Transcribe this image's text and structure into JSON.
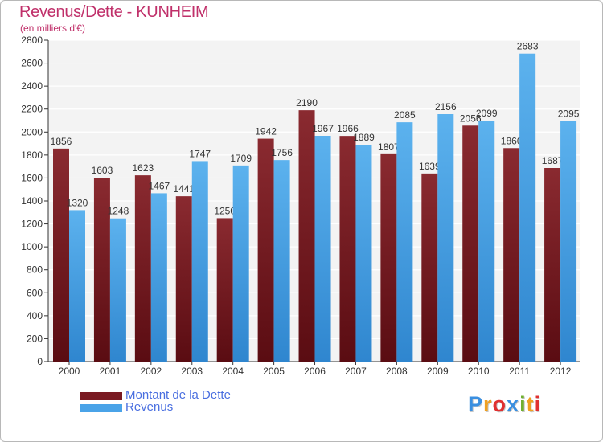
{
  "header": {
    "title": "Revenus/Dette - KUNHEIM",
    "subtitle": "(en milliers d'€)"
  },
  "legend": {
    "debt_label": "Montant de la Dette",
    "revenue_label": "Revenus"
  },
  "logo": {
    "letters": [
      "P",
      "r",
      "o",
      "x",
      "i",
      "t",
      "i"
    ],
    "colors": [
      "#3a8fe0",
      "#f0a020",
      "#e03030",
      "#3a8fe0",
      "#70b030",
      "#f0a020",
      "#e03030"
    ]
  },
  "colors": {
    "debt": "#7a1a22",
    "revenue": "#4aa3e8",
    "title": "#c0306a",
    "legend_text": "#4a6fe0"
  },
  "chart_data": {
    "type": "bar",
    "title": "Revenus/Dette - KUNHEIM",
    "subtitle": "(en milliers d'€)",
    "categories": [
      "2000",
      "2001",
      "2002",
      "2003",
      "2004",
      "2005",
      "2006",
      "2007",
      "2008",
      "2009",
      "2010",
      "2011",
      "2012"
    ],
    "series": [
      {
        "name": "Montant de la Dette",
        "values": [
          1856,
          1603,
          1623,
          1441,
          1250,
          1942,
          2190,
          1966,
          1807,
          1639,
          2056,
          1860,
          1687
        ],
        "labels": [
          "1856",
          "1603",
          "1623",
          "1441",
          "1250",
          "1942",
          "2190",
          "1966",
          "1807",
          "1639",
          "2056",
          "1860",
          "1687"
        ]
      },
      {
        "name": "Revenus",
        "values": [
          1320,
          1248,
          1467,
          1747,
          1709,
          1756,
          1967,
          1889,
          2085,
          2156,
          2099,
          2683,
          2095
        ],
        "labels": [
          "1320",
          "1248",
          "1467",
          "1747",
          "1709",
          "1756",
          "1967",
          "1889",
          "2085",
          "2156",
          "2099",
          "2683",
          "2095"
        ]
      }
    ],
    "ylim": [
      0,
      2800
    ],
    "yticks": [
      0,
      200,
      400,
      600,
      800,
      1000,
      1200,
      1400,
      1600,
      1800,
      2000,
      2200,
      2400,
      2600,
      2800
    ],
    "grid": true,
    "legend_position": "bottom-left"
  }
}
